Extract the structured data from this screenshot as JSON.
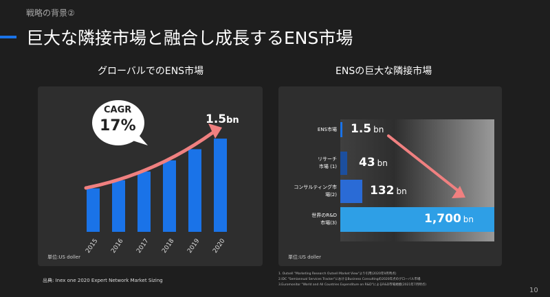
{
  "breadcrumb": "戦略の背景②",
  "title": "巨大な隣接市場と融合し成長するENS市場",
  "page_number": "10",
  "left_panel": {
    "heading": "グローバルでのENS市場",
    "bubble_line1": "CAGR",
    "bubble_line2": "17%",
    "top_value": "1.5",
    "top_unit": "bn",
    "unit_note": "単位:US doller",
    "source": "出典: Inex one 2020 Expert Network Market Sizing",
    "bar_color": "#1a73e8"
  },
  "right_panel": {
    "heading": "ENSの巨大な隣接市場",
    "unit_note": "単位:US doller",
    "rows": [
      {
        "label_lines": [
          "ENS市場"
        ],
        "value": "1.5",
        "unit": "bn",
        "color": "#1a73e8"
      },
      {
        "label_lines": [
          "リサーチ",
          "市場 (1)"
        ],
        "value": "43",
        "unit": "bn",
        "color": "#1c4f9e"
      },
      {
        "label_lines": [
          "コンサルティング市",
          "場(2)"
        ],
        "value": "132",
        "unit": "bn",
        "color": "#2a6bd6"
      },
      {
        "label_lines": [
          "世界のR&D",
          "市場(3)"
        ],
        "value": "1,700",
        "unit": "bn",
        "color": "#2e9fe6"
      }
    ],
    "notes": [
      "1. Outsell \"Marketing Research Outsell Market View\"より引用(2020年9月時点)",
      "2.IDC \"Semiannual Services Tracker\"におけるBusiness Consultingの2020年点のグローバル市場",
      "3.Euromonitor \"World and All Countries Expenditure on R&D\"によるR&D市場規模(2021年7月時点)"
    ]
  },
  "chart_data": {
    "type": "bar",
    "title": "グローバルでのENS市場",
    "categories": [
      "2015",
      "2016",
      "2017",
      "2018",
      "2019",
      "2020"
    ],
    "values": [
      0.7,
      0.83,
      0.97,
      1.15,
      1.33,
      1.5
    ],
    "ylim": [
      0,
      1.6
    ],
    "xlabel": "",
    "ylabel": "",
    "annotations": [
      "CAGR 17%",
      "1.5bn"
    ]
  }
}
